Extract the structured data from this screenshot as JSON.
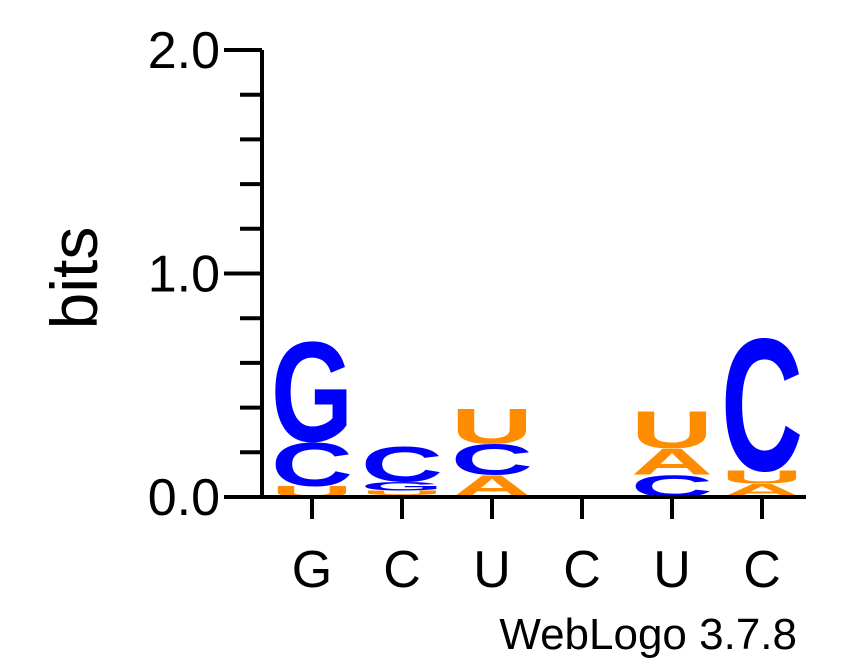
{
  "chart_data": {
    "type": "sequence-logo",
    "ylabel": "bits",
    "ylim": [
      0,
      2
    ],
    "y_ticks": [
      "0.0",
      "1.0",
      "2.0"
    ],
    "y_minor_step": 0.2,
    "credit": "WebLogo 3.7.8",
    "colors": {
      "G": "#0000ff",
      "C": "#0000ff",
      "A": "#ff8c00",
      "U": "#ff8c00"
    },
    "positions": [
      {
        "label": "G",
        "stack": [
          {
            "letter": "U",
            "bits": 0.05
          },
          {
            "letter": "C",
            "bits": 0.2
          },
          {
            "letter": "G",
            "bits": 0.46
          }
        ]
      },
      {
        "label": "C",
        "stack": [
          {
            "letter": "A",
            "bits": 0.01
          },
          {
            "letter": "U",
            "bits": 0.02
          },
          {
            "letter": "G",
            "bits": 0.04
          },
          {
            "letter": "C",
            "bits": 0.16
          }
        ]
      },
      {
        "label": "U",
        "stack": [
          {
            "letter": "A",
            "bits": 0.1
          },
          {
            "letter": "C",
            "bits": 0.14
          },
          {
            "letter": "U",
            "bits": 0.16
          }
        ]
      },
      {
        "label": "C",
        "stack": [
          {
            "letter": "C",
            "bits": 0.005
          }
        ]
      },
      {
        "label": "U",
        "stack": [
          {
            "letter": "C",
            "bits": 0.1
          },
          {
            "letter": "A",
            "bits": 0.12
          },
          {
            "letter": "U",
            "bits": 0.17
          }
        ]
      },
      {
        "label": "C",
        "stack": [
          {
            "letter": "A",
            "bits": 0.06
          },
          {
            "letter": "U",
            "bits": 0.06
          },
          {
            "letter": "C",
            "bits": 0.61
          }
        ]
      }
    ]
  }
}
